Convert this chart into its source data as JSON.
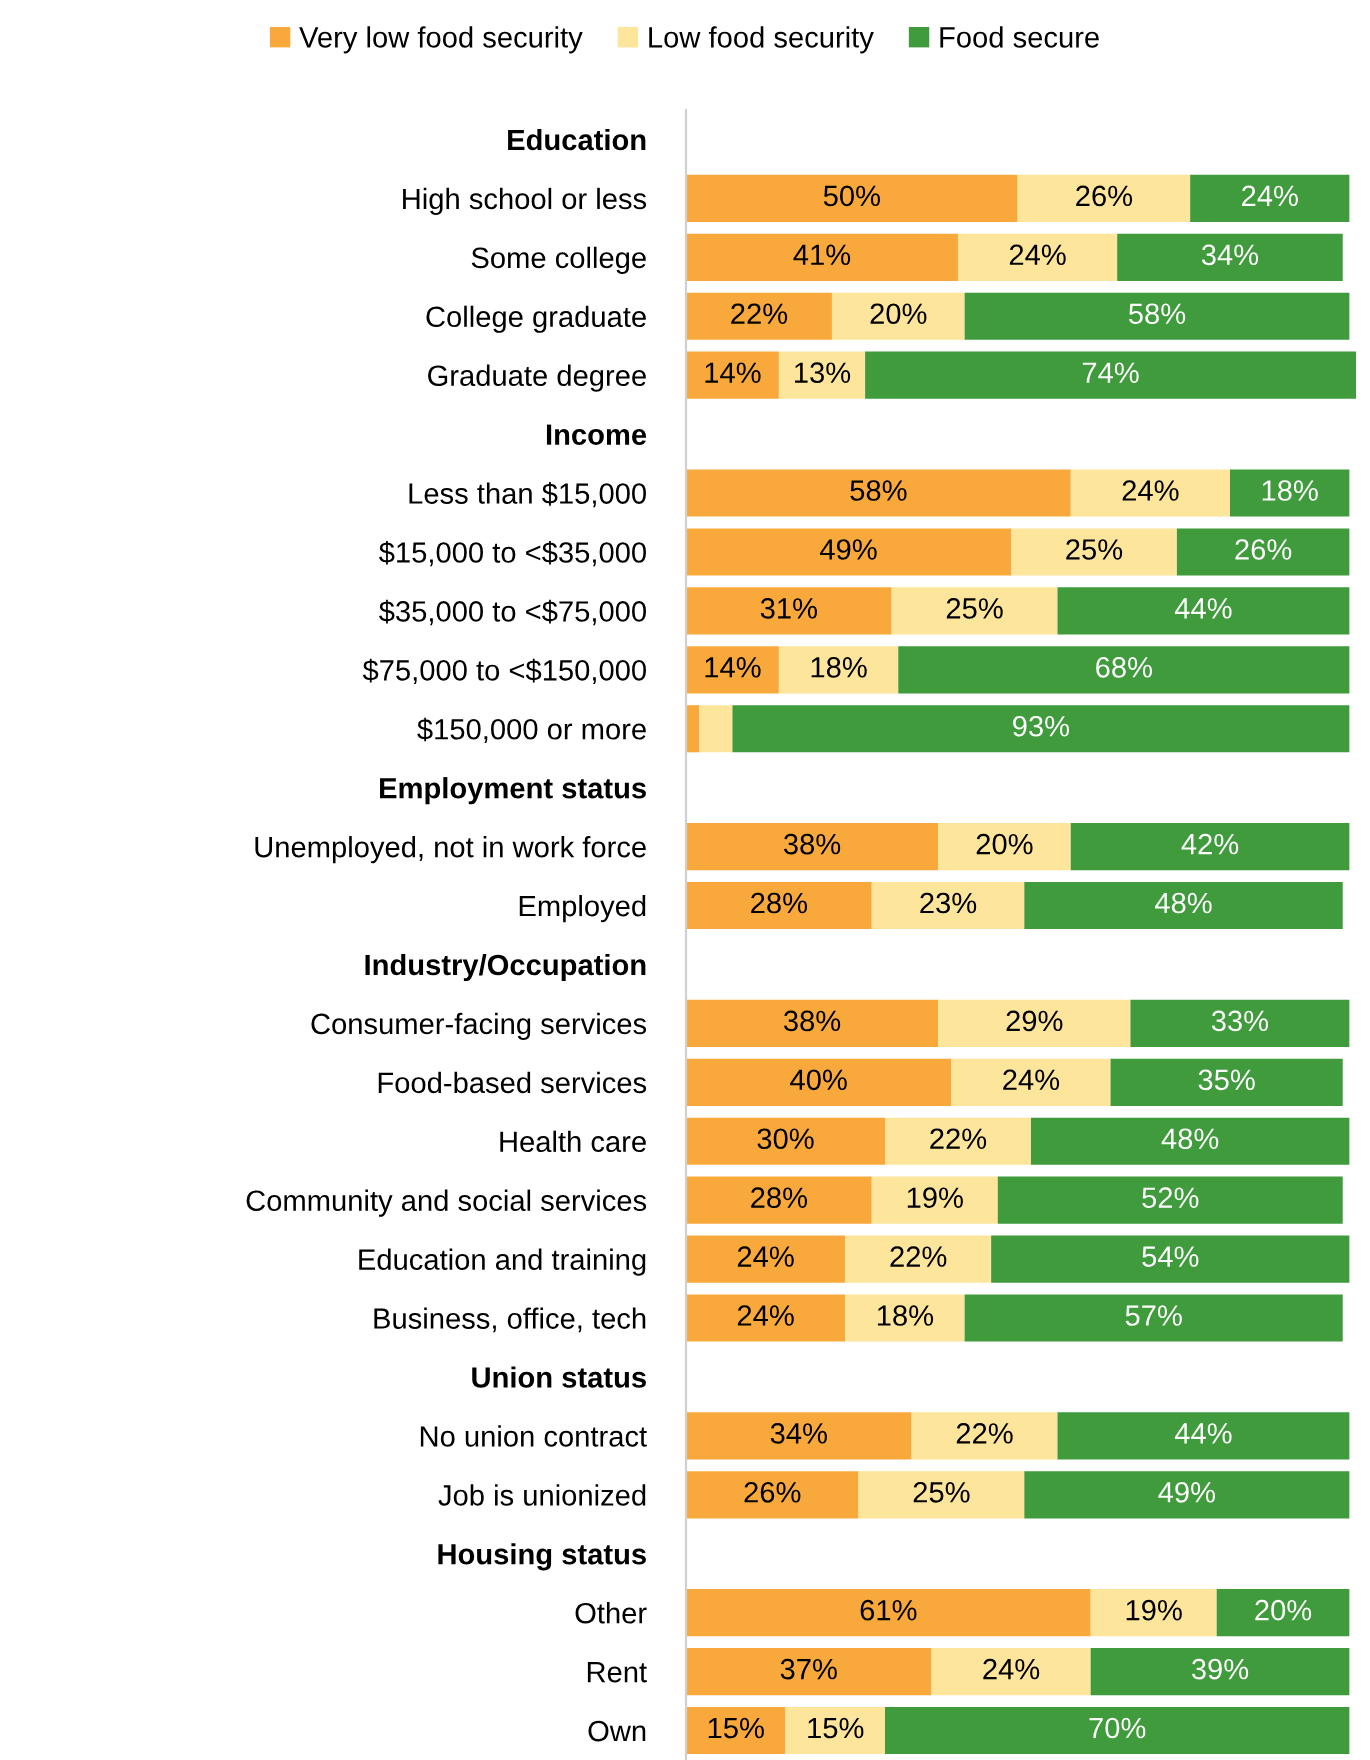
{
  "chart_data": {
    "type": "bar",
    "orientation": "horizontal",
    "stacked": true,
    "legend": "top",
    "grid": false,
    "categories": [
      "Education",
      "High school or less",
      "Some college",
      "College graduate",
      "Graduate degree",
      "Income",
      "Less than $15,000",
      "$15,000 to <$35,000",
      "$35,000 to <$75,000",
      "$75,000 to <$150,000",
      "$150,000 or more",
      "Employment status",
      "Unemployed, not in work force",
      "Employed",
      "Industry/Occupation",
      "Consumer-facing services",
      "Food-based services",
      "Health care",
      "Community and social services",
      "Education and training",
      "Business, office, tech",
      "Union status",
      "No union contract",
      "Job is unionized",
      "Housing status",
      "Other",
      "Rent",
      "Own"
    ],
    "series": [
      {
        "name": "Very low food security",
        "color": "#f9a93c",
        "values": [
          null,
          50,
          41,
          22,
          14,
          null,
          58,
          49,
          31,
          14,
          2,
          null,
          38,
          28,
          null,
          38,
          40,
          30,
          28,
          24,
          24,
          null,
          34,
          26,
          null,
          61,
          37,
          15
        ],
        "value_labels": [
          null,
          "50%",
          "41%",
          "22%",
          "14%",
          null,
          "58%",
          "49%",
          "31%",
          "14%",
          null,
          null,
          "38%",
          "28%",
          null,
          "38%",
          "40%",
          "30%",
          "28%",
          "24%",
          "24%",
          null,
          "34%",
          "26%",
          null,
          "61%",
          "37%",
          "15%"
        ]
      },
      {
        "name": "Low food security",
        "color": "#fde59b",
        "values": [
          null,
          26,
          24,
          20,
          13,
          null,
          24,
          25,
          25,
          18,
          5,
          null,
          20,
          23,
          null,
          29,
          24,
          22,
          19,
          22,
          18,
          null,
          22,
          25,
          null,
          19,
          24,
          15
        ],
        "value_labels": [
          null,
          "26%",
          "24%",
          "20%",
          "13%",
          null,
          "24%",
          "25%",
          "25%",
          "18%",
          null,
          null,
          "20%",
          "23%",
          null,
          "29%",
          "24%",
          "22%",
          "19%",
          "22%",
          "18%",
          null,
          "22%",
          "25%",
          null,
          "19%",
          "24%",
          "15%"
        ]
      },
      {
        "name": "Food secure",
        "color": "#3f9b3c",
        "values": [
          null,
          24,
          34,
          58,
          74,
          null,
          18,
          26,
          44,
          68,
          93,
          null,
          42,
          48,
          null,
          33,
          35,
          48,
          52,
          54,
          57,
          null,
          44,
          49,
          null,
          20,
          39,
          70
        ],
        "value_labels": [
          null,
          "24%",
          "34%",
          "58%",
          "74%",
          null,
          "18%",
          "26%",
          "44%",
          "68%",
          "93%",
          null,
          "42%",
          "48%",
          null,
          "33%",
          "35%",
          "48%",
          "52%",
          "54%",
          "57%",
          null,
          "44%",
          "49%",
          null,
          "20%",
          "39%",
          "70%"
        ]
      }
    ]
  }
}
